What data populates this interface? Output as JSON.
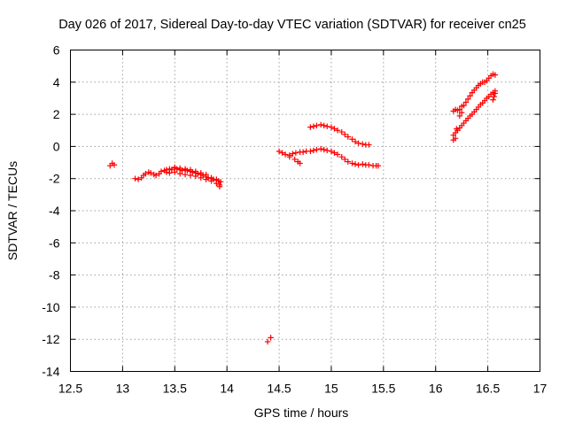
{
  "chart_data": {
    "type": "scatter",
    "title": "Day 026 of 2017, Sidereal Day-to-day VTEC variation (SDTVAR) for receiver cn25",
    "xlabel": "GPS time / hours",
    "ylabel": "SDTVAR / TECUs",
    "xlim": [
      12.5,
      17
    ],
    "ylim": [
      -14,
      6
    ],
    "xticks": [
      12.5,
      13,
      13.5,
      14,
      14.5,
      15,
      15.5,
      16,
      16.5,
      17
    ],
    "xtick_labels": [
      "12.5",
      "13",
      "13.5",
      "14",
      "14.5",
      "15",
      "15.5",
      "16",
      "16.5",
      "17"
    ],
    "yticks": [
      -14,
      -12,
      -10,
      -8,
      -6,
      -4,
      -2,
      0,
      2,
      4,
      6
    ],
    "ytick_labels": [
      "-14",
      "-12",
      "-10",
      "-8",
      "-6",
      "-4",
      "-2",
      "0",
      "2",
      "4",
      "6"
    ],
    "grid": true,
    "marker": "+",
    "color": "#ff0000",
    "series": [
      {
        "name": "SDTVAR",
        "x": [
          12.88,
          12.9,
          12.92,
          13.12,
          13.15,
          13.18,
          13.2,
          13.22,
          13.25,
          13.27,
          13.3,
          13.32,
          13.35,
          13.37,
          13.4,
          13.42,
          13.45,
          13.47,
          13.5,
          13.52,
          13.55,
          13.57,
          13.6,
          13.62,
          13.65,
          13.67,
          13.7,
          13.72,
          13.75,
          13.77,
          13.8,
          13.82,
          13.85,
          13.87,
          13.9,
          13.92,
          13.94,
          13.42,
          13.45,
          13.5,
          13.55,
          13.6,
          13.65,
          13.7,
          13.75,
          13.8,
          13.85,
          13.9,
          13.93,
          13.5,
          13.55,
          13.6,
          13.65,
          13.7,
          13.75,
          13.8,
          13.85,
          13.9,
          13.93,
          14.39,
          14.42,
          14.5,
          14.53,
          14.56,
          14.6,
          14.63,
          14.66,
          14.7,
          14.73,
          14.76,
          14.8,
          14.83,
          14.86,
          14.9,
          14.93,
          14.96,
          15.0,
          15.03,
          15.06,
          15.1,
          15.13,
          15.16,
          15.2,
          15.23,
          15.26,
          15.3,
          15.33,
          15.36,
          15.4,
          15.43,
          15.45,
          14.6,
          14.65,
          14.68,
          14.7,
          14.8,
          14.83,
          14.86,
          14.9,
          14.93,
          14.96,
          15.0,
          15.03,
          15.06,
          15.1,
          15.13,
          15.16,
          15.2,
          15.23,
          15.26,
          15.3,
          15.33,
          15.36,
          16.17,
          16.19,
          16.21,
          16.23,
          16.25,
          16.27,
          16.29,
          16.31,
          16.33,
          16.35,
          16.37,
          16.39,
          16.41,
          16.43,
          16.45,
          16.47,
          16.49,
          16.51,
          16.53,
          16.55,
          16.57,
          16.17,
          16.19,
          16.21,
          16.23,
          16.25,
          16.27,
          16.29,
          16.31,
          16.33,
          16.35,
          16.37,
          16.39,
          16.41,
          16.43,
          16.45,
          16.47,
          16.49,
          16.51,
          16.53,
          16.55,
          16.57,
          16.17,
          16.19,
          16.2,
          16.23,
          16.25,
          16.55,
          16.56,
          16.57
        ],
        "y": [
          -1.2,
          -1.05,
          -1.15,
          -2.0,
          -2.05,
          -1.95,
          -1.8,
          -1.7,
          -1.6,
          -1.65,
          -1.75,
          -1.8,
          -1.7,
          -1.55,
          -1.5,
          -1.45,
          -1.4,
          -1.45,
          -1.35,
          -1.4,
          -1.45,
          -1.5,
          -1.45,
          -1.5,
          -1.55,
          -1.6,
          -1.65,
          -1.7,
          -1.75,
          -1.8,
          -1.9,
          -1.95,
          -2.0,
          -2.05,
          -2.1,
          -2.15,
          -2.2,
          -1.6,
          -1.65,
          -1.6,
          -1.7,
          -1.75,
          -1.8,
          -1.85,
          -1.95,
          -2.05,
          -2.15,
          -2.3,
          -2.4,
          -1.3,
          -1.35,
          -1.4,
          -1.45,
          -1.55,
          -1.65,
          -1.75,
          -1.95,
          -2.05,
          -2.5,
          -12.15,
          -11.9,
          -0.3,
          -0.4,
          -0.5,
          -0.55,
          -0.45,
          -0.4,
          -0.35,
          -0.35,
          -0.3,
          -0.3,
          -0.25,
          -0.2,
          -0.15,
          -0.2,
          -0.25,
          -0.3,
          -0.4,
          -0.5,
          -0.65,
          -0.8,
          -0.95,
          -1.05,
          -1.1,
          -1.15,
          -1.1,
          -1.15,
          -1.15,
          -1.2,
          -1.2,
          -1.2,
          -0.65,
          -0.8,
          -0.95,
          -1.05,
          1.2,
          1.25,
          1.3,
          1.35,
          1.3,
          1.25,
          1.2,
          1.1,
          1.0,
          0.9,
          0.75,
          0.6,
          0.45,
          0.3,
          0.2,
          0.15,
          0.1,
          0.1,
          2.2,
          2.3,
          2.25,
          2.3,
          2.5,
          2.55,
          2.75,
          2.95,
          3.15,
          3.35,
          3.5,
          3.65,
          3.8,
          3.9,
          4.0,
          4.0,
          4.1,
          4.25,
          4.4,
          4.5,
          4.45,
          0.7,
          0.85,
          1.0,
          1.15,
          1.3,
          1.45,
          1.6,
          1.75,
          1.9,
          2.0,
          2.15,
          2.3,
          2.45,
          2.6,
          2.7,
          2.85,
          3.0,
          3.1,
          3.25,
          3.35,
          3.45,
          0.4,
          0.5,
          1.1,
          1.9,
          2.1,
          2.9,
          3.1,
          3.3
        ]
      }
    ]
  }
}
